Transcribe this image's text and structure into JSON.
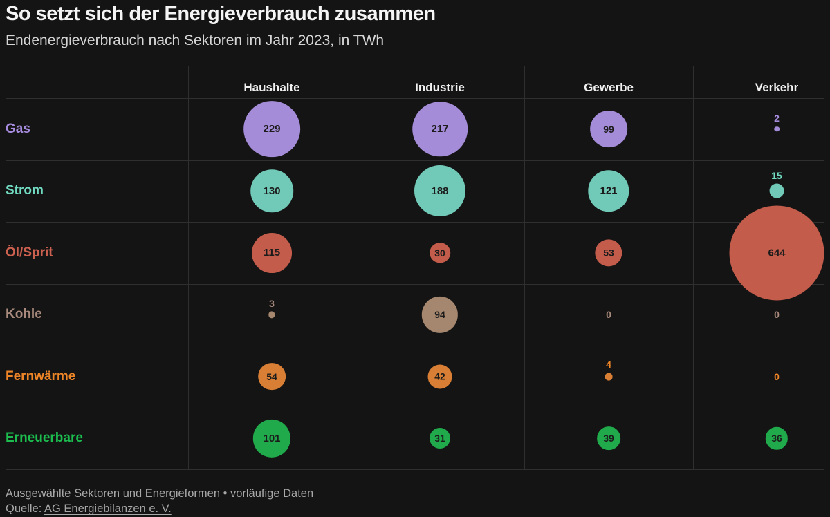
{
  "title": "So setzt sich der Energieverbrauch zusammen",
  "subtitle": "Endenergieverbrauch nach Sektoren im Jahr 2023, in TWh",
  "footer": {
    "note": "Ausgewählte Sektoren und Energieformen • vorläufige Daten",
    "source_prefix": "Quelle: ",
    "source_link": "AG Energiebilanzen e. V."
  },
  "colors": {
    "background": "#141414",
    "grid": "#2f2f2f",
    "title": "#f5f5f5",
    "subtitle": "#d6d6d6",
    "header": "#f0f0f0",
    "footer": "#a8a8a8",
    "value_text": "#1b1b1b"
  },
  "chart_data": {
    "type": "table",
    "variant": "bubble-matrix",
    "unit": "TWh",
    "size_encoding": "circle area proportional to value",
    "legend_position": "none",
    "columns": [
      "Haushalte",
      "Industrie",
      "Gewerbe",
      "Verkehr"
    ],
    "rows": [
      {
        "label": "Gas",
        "label_color": "#a78ce0",
        "bubble_color": "#a58cd8",
        "values": [
          229,
          217,
          99,
          2
        ]
      },
      {
        "label": "Strom",
        "label_color": "#72dcc3",
        "bubble_color": "#71c9b7",
        "values": [
          130,
          188,
          121,
          15
        ]
      },
      {
        "label": "Öl/Sprit",
        "label_color": "#cd6150",
        "bubble_color": "#c35c4b",
        "values": [
          115,
          30,
          53,
          644
        ]
      },
      {
        "label": "Kohle",
        "label_color": "#a98a7c",
        "bubble_color": "#a5876f",
        "values": [
          3,
          94,
          0,
          0
        ]
      },
      {
        "label": "Fernwärme",
        "label_color": "#ee8527",
        "bubble_color": "#d97f35",
        "values": [
          54,
          42,
          4,
          0
        ]
      },
      {
        "label": "Erneuerbare",
        "label_color": "#1cbc4f",
        "bubble_color": "#20aa4b",
        "values": [
          101,
          31,
          39,
          36
        ]
      }
    ]
  }
}
